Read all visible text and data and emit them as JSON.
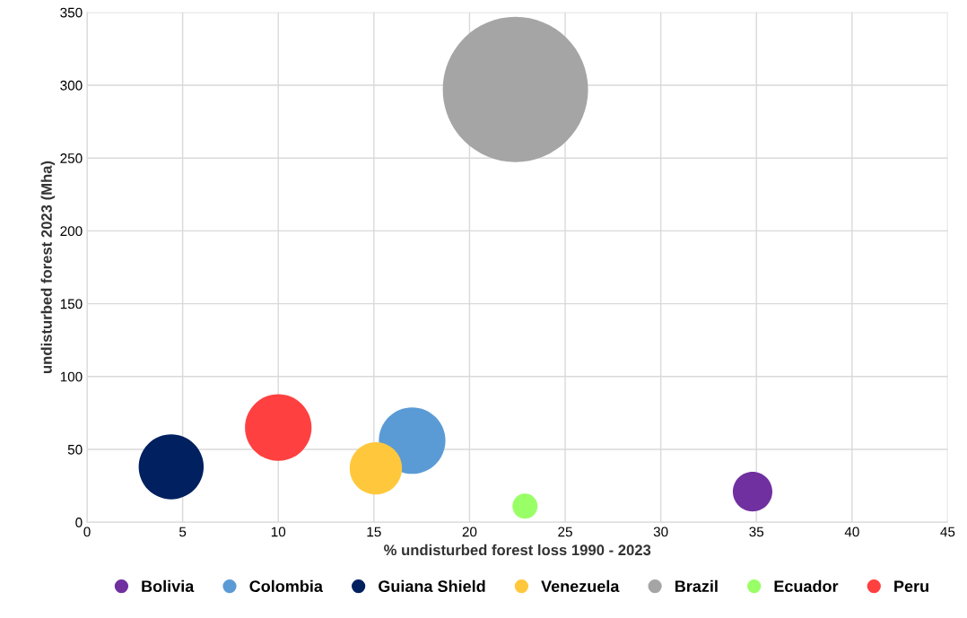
{
  "chart_data": {
    "type": "bubble",
    "xlabel": "% undisturbed forest loss 1990 - 2023",
    "ylabel": "undisturbed forest 2023 (Mha)",
    "xlim": [
      0,
      45
    ],
    "xticks": [
      0,
      5,
      10,
      15,
      20,
      25,
      30,
      35,
      40,
      45
    ],
    "ylim": [
      0,
      350
    ],
    "yticks": [
      0,
      50,
      100,
      150,
      200,
      250,
      300,
      350
    ],
    "grid": true,
    "legend": "bottom",
    "series": [
      {
        "name": "Bolivia",
        "color": "#7030a0",
        "x": [
          34.8
        ],
        "values": [
          21
        ],
        "sizes": [
          0.074
        ]
      },
      {
        "name": "Colombia",
        "color": "#5b9bd5",
        "x": [
          17.0
        ],
        "values": [
          56
        ],
        "sizes": [
          0.21
        ]
      },
      {
        "name": "Guiana Shield",
        "color": "#002060",
        "x": [
          4.4
        ],
        "values": [
          38
        ],
        "sizes": [
          0.2
        ]
      },
      {
        "name": "Venezuela",
        "color": "#ffc83c",
        "x": [
          15.1
        ],
        "values": [
          37
        ],
        "sizes": [
          0.13
        ]
      },
      {
        "name": "Brazil",
        "color": "#a5a5a5",
        "x": [
          22.4
        ],
        "values": [
          297
        ],
        "sizes": [
          1
        ]
      },
      {
        "name": "Ecuador",
        "color": "#99ff66",
        "x": [
          22.9
        ],
        "values": [
          11
        ],
        "sizes": [
          0.03
        ]
      },
      {
        "name": "Peru",
        "color": "#ff4040",
        "x": [
          10.0
        ],
        "values": [
          65
        ],
        "sizes": [
          0.21
        ]
      }
    ]
  }
}
